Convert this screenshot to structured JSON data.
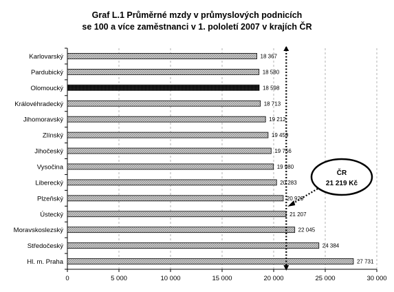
{
  "chart_data": {
    "type": "bar",
    "orientation": "horizontal",
    "title_lines": [
      "Graf L.1 Průměrné mzdy v průmyslových podnicích",
      "se 100 a více zaměstnanci v 1. pololetí 2007 v krajích ČR"
    ],
    "categories": [
      "Karlovarský",
      "Pardubický",
      "Olomoucký",
      "Královéhradecký",
      "Jihomoravský",
      "Zlínský",
      "Jihočeský",
      "Vysočina",
      "Liberecký",
      "Plzeňský",
      "Ústecký",
      "Moravskoslezský",
      "Středočeský",
      "Hl. m. Praha"
    ],
    "values": [
      18367,
      18580,
      18598,
      18713,
      19212,
      19459,
      19756,
      19980,
      20283,
      20929,
      21207,
      22045,
      24384,
      27731
    ],
    "value_labels": [
      "18 367",
      "18 580",
      "18 598",
      "18 713",
      "19 212",
      "19 459",
      "19 756",
      "19 980",
      "20 283",
      "20 929",
      "21 207",
      "22 045",
      "24 384",
      "27 731"
    ],
    "highlighted_category": "Olomoucký",
    "xlim": [
      0,
      30000
    ],
    "xticks": [
      0,
      5000,
      10000,
      15000,
      20000,
      25000,
      30000
    ],
    "xtick_labels": [
      "0",
      "5 000",
      "10 000",
      "15 000",
      "20 000",
      "25 000",
      "30 000"
    ],
    "grid": "vertical dashed",
    "reference_line": {
      "value": 21219,
      "label_lines": [
        "ČR",
        "21 219 Kč"
      ]
    },
    "colors": {
      "bar_fill": "#c0c0c0",
      "bar_hatch": "#808080",
      "highlight_fill": "#000000",
      "grid": "#a0a0a0"
    }
  }
}
